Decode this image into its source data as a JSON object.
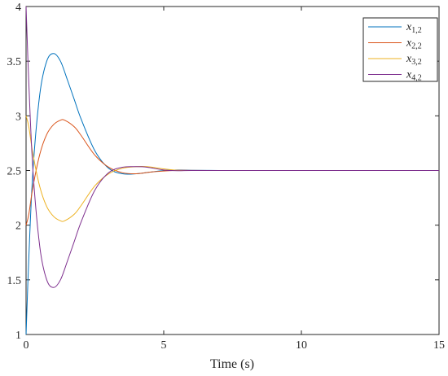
{
  "chart_data": {
    "type": "line",
    "title": "",
    "xlabel": "Time (s)",
    "ylabel": "",
    "xlim": [
      0,
      15
    ],
    "ylim": [
      1,
      4
    ],
    "xticks": [
      0,
      5,
      10,
      15
    ],
    "xtick_labels": [
      "0",
      "5",
      "10",
      "15"
    ],
    "yticks": [
      1,
      1.5,
      2,
      2.5,
      3,
      3.5,
      4
    ],
    "ytick_labels": [
      "1",
      "1.5",
      "2",
      "2.5",
      "3",
      "3.5",
      "4"
    ],
    "grid": false,
    "legend_position": "top-right",
    "series": [
      {
        "name": "x_{1,2}",
        "label_main": "x",
        "label_sub": "1,2",
        "color": "#0072BD",
        "x": [
          0,
          0.1,
          0.25,
          0.5,
          0.75,
          1.0,
          1.25,
          1.5,
          1.75,
          2.0,
          2.5,
          3.0,
          3.5,
          4.0,
          4.5,
          5.0,
          5.5,
          6.0,
          7.0,
          8.0,
          10.0,
          12.0,
          15.0
        ],
        "y": [
          1.0,
          1.7,
          2.5,
          3.2,
          3.5,
          3.57,
          3.5,
          3.33,
          3.15,
          2.97,
          2.68,
          2.52,
          2.47,
          2.47,
          2.485,
          2.5,
          2.505,
          2.502,
          2.5,
          2.5,
          2.5,
          2.5,
          2.5
        ]
      },
      {
        "name": "x_{2,2}",
        "label_main": "x",
        "label_sub": "2,2",
        "color": "#D95319",
        "x": [
          0,
          0.1,
          0.25,
          0.5,
          0.75,
          1.0,
          1.25,
          1.4,
          1.75,
          2.0,
          2.5,
          3.0,
          3.5,
          4.0,
          4.5,
          5.0,
          5.5,
          6.0,
          7.0,
          8.0,
          10.0,
          12.0,
          15.0
        ],
        "y": [
          2.0,
          2.1,
          2.35,
          2.65,
          2.83,
          2.92,
          2.96,
          2.96,
          2.9,
          2.82,
          2.64,
          2.53,
          2.48,
          2.47,
          2.485,
          2.495,
          2.502,
          2.501,
          2.5,
          2.5,
          2.5,
          2.5,
          2.5
        ]
      },
      {
        "name": "x_{3,2}",
        "label_main": "x",
        "label_sub": "3,2",
        "color": "#EDB120",
        "x": [
          0,
          0.1,
          0.25,
          0.5,
          0.75,
          1.0,
          1.25,
          1.4,
          1.75,
          2.0,
          2.5,
          3.0,
          3.5,
          4.0,
          4.4,
          5.0,
          5.5,
          6.0,
          7.0,
          8.0,
          10.0,
          12.0,
          15.0
        ],
        "y": [
          3.0,
          2.9,
          2.65,
          2.35,
          2.17,
          2.08,
          2.04,
          2.04,
          2.1,
          2.18,
          2.36,
          2.47,
          2.52,
          2.535,
          2.535,
          2.515,
          2.502,
          2.5,
          2.5,
          2.5,
          2.5,
          2.5,
          2.5
        ]
      },
      {
        "name": "x_{4,2}",
        "label_main": "x",
        "label_sub": "4,2",
        "color": "#7E2F8E",
        "x": [
          0,
          0.1,
          0.25,
          0.5,
          0.75,
          1.0,
          1.25,
          1.5,
          1.75,
          2.0,
          2.5,
          3.0,
          3.5,
          4.0,
          4.4,
          5.0,
          5.5,
          6.0,
          7.0,
          8.0,
          10.0,
          12.0,
          15.0
        ],
        "y": [
          4.0,
          3.3,
          2.5,
          1.8,
          1.5,
          1.43,
          1.5,
          1.67,
          1.85,
          2.03,
          2.32,
          2.48,
          2.53,
          2.535,
          2.53,
          2.505,
          2.498,
          2.5,
          2.5,
          2.5,
          2.5,
          2.5,
          2.5
        ]
      }
    ]
  }
}
